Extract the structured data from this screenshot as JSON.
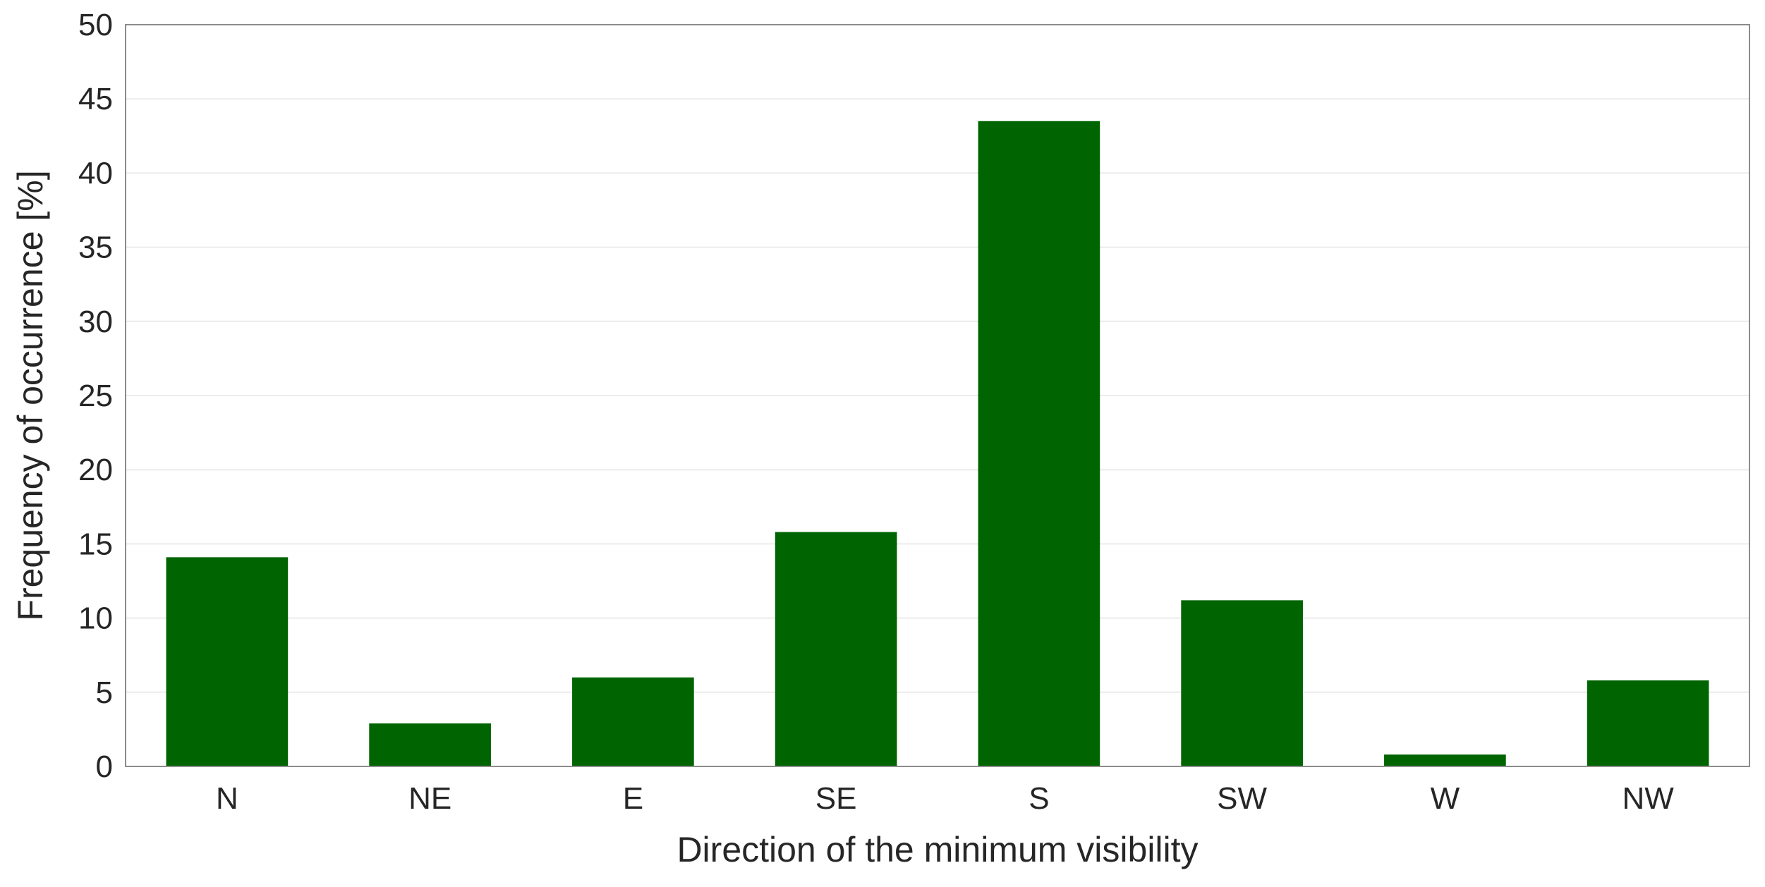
{
  "chart_data": {
    "type": "bar",
    "categories": [
      "N",
      "NE",
      "E",
      "SE",
      "S",
      "SW",
      "W",
      "NW"
    ],
    "values": [
      14.1,
      2.9,
      6.0,
      15.8,
      43.5,
      11.2,
      0.8,
      5.8
    ],
    "xlabel": "Direction of the minimum visibility",
    "ylabel": "Frequency of occurrence [%]",
    "ylim": [
      0,
      50
    ],
    "yticks": [
      "0",
      "5",
      "10",
      "15",
      "20",
      "25",
      "30",
      "35",
      "40",
      "45",
      "50"
    ],
    "grid": "horizontal",
    "legend": "none",
    "colors": {
      "bar": "#006400",
      "axis": "#8c8c8c",
      "grid": "#ececec",
      "text": "#262626"
    }
  }
}
